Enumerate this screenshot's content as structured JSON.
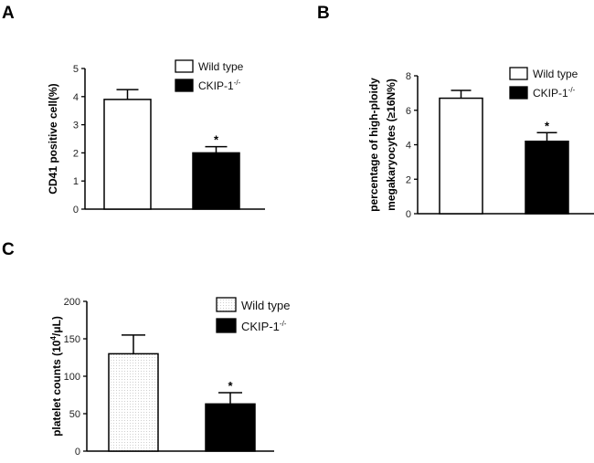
{
  "chart_data": [
    {
      "panel": "A",
      "type": "bar",
      "ylabel": "CD41 positive cell(%)",
      "ylim": [
        0,
        5
      ],
      "yticks": [
        0,
        1,
        2,
        3,
        4,
        5
      ],
      "categories": [
        "Wild type",
        "CKIP-1"
      ],
      "values": [
        3.9,
        2.0
      ],
      "errors": [
        0.35,
        0.22
      ],
      "significance": [
        "",
        "*"
      ],
      "legend": [
        "Wild type",
        "CKIP-1"
      ],
      "legend_superscript": "-/-",
      "legend_position": "top-right"
    },
    {
      "panel": "B",
      "type": "bar",
      "ylabel": "percentage of high-ploidy",
      "ylabel2": "megakaryocytes (≥16N%)",
      "ylim": [
        0,
        8
      ],
      "yticks": [
        0,
        2,
        4,
        6,
        8
      ],
      "categories": [
        "Wild type",
        "CKIP-1"
      ],
      "values": [
        6.7,
        4.2
      ],
      "errors": [
        0.45,
        0.5
      ],
      "significance": [
        "",
        "*"
      ],
      "legend": [
        "Wild type",
        "CKIP-1"
      ],
      "legend_superscript": "-/-",
      "legend_position": "top-right"
    },
    {
      "panel": "C",
      "type": "bar",
      "ylabel": "platelet counts (10",
      "ylabel_sup": "4",
      "ylabel_end": "/μL)",
      "ylim": [
        0,
        200
      ],
      "yticks": [
        0,
        50,
        100,
        150,
        200
      ],
      "categories": [
        "Wild type",
        "CKIP-1"
      ],
      "values": [
        130,
        63
      ],
      "errors": [
        25,
        15
      ],
      "significance": [
        "",
        "*"
      ],
      "legend": [
        "Wild type",
        "CKIP-1"
      ],
      "legend_superscript": "-/-",
      "legend_position": "top-right"
    }
  ]
}
